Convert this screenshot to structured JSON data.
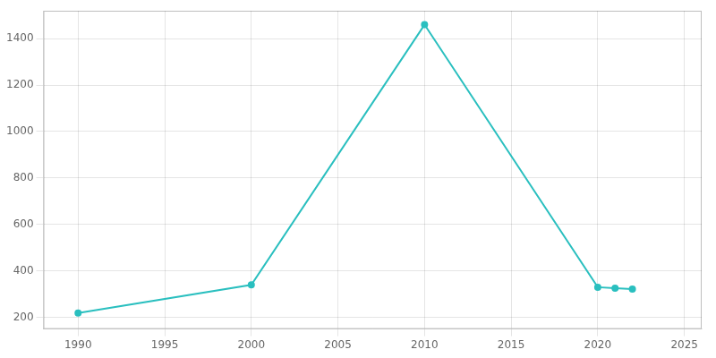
{
  "chart_data": {
    "type": "line",
    "x": [
      1990,
      2000,
      2010,
      2020,
      2021,
      2022
    ],
    "values": [
      219,
      340,
      1460,
      330,
      326,
      322
    ],
    "color": "#2abfbf",
    "marker": "circle",
    "xlim": [
      1988,
      2026
    ],
    "xticks": [
      1990,
      1995,
      2000,
      2005,
      2010,
      2015,
      2020,
      2025
    ],
    "ylim": [
      150,
      1520
    ],
    "yticks": [
      200,
      400,
      600,
      800,
      1000,
      1200,
      1400
    ],
    "grid": true
  }
}
